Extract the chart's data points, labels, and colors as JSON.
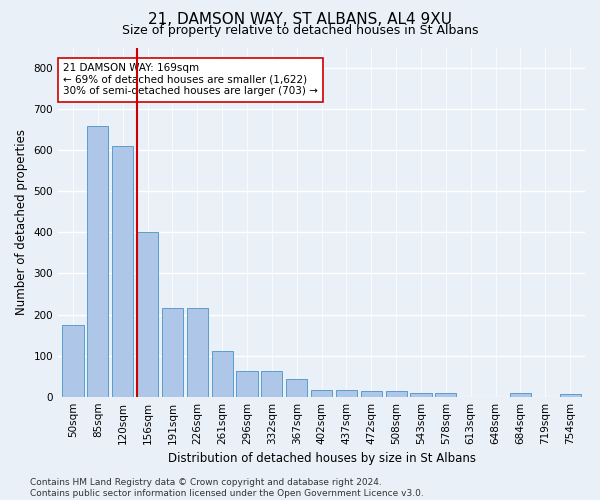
{
  "title": "21, DAMSON WAY, ST ALBANS, AL4 9XU",
  "subtitle": "Size of property relative to detached houses in St Albans",
  "xlabel": "Distribution of detached houses by size in St Albans",
  "ylabel": "Number of detached properties",
  "categories": [
    "50sqm",
    "85sqm",
    "120sqm",
    "156sqm",
    "191sqm",
    "226sqm",
    "261sqm",
    "296sqm",
    "332sqm",
    "367sqm",
    "402sqm",
    "437sqm",
    "472sqm",
    "508sqm",
    "543sqm",
    "578sqm",
    "613sqm",
    "648sqm",
    "684sqm",
    "719sqm",
    "754sqm"
  ],
  "values": [
    175,
    660,
    610,
    400,
    217,
    217,
    110,
    63,
    63,
    43,
    17,
    17,
    15,
    15,
    8,
    8,
    0,
    0,
    8,
    0,
    7
  ],
  "bar_color": "#aec6e8",
  "bar_edge_color": "#5a9ec9",
  "vline_pos": 2.575,
  "vline_color": "#cc0000",
  "annotation_text": "21 DAMSON WAY: 169sqm\n← 69% of detached houses are smaller (1,622)\n30% of semi-detached houses are larger (703) →",
  "annotation_box_color": "#ffffff",
  "annotation_box_edgecolor": "#cc0000",
  "ylim": [
    0,
    850
  ],
  "yticks": [
    0,
    100,
    200,
    300,
    400,
    500,
    600,
    700,
    800
  ],
  "background_color": "#eaf0f8",
  "grid_color": "#ffffff",
  "footer": "Contains HM Land Registry data © Crown copyright and database right 2024.\nContains public sector information licensed under the Open Government Licence v3.0.",
  "title_fontsize": 11,
  "subtitle_fontsize": 9,
  "xlabel_fontsize": 8.5,
  "ylabel_fontsize": 8.5,
  "tick_fontsize": 7.5,
  "annotation_fontsize": 7.5,
  "footer_fontsize": 6.5
}
